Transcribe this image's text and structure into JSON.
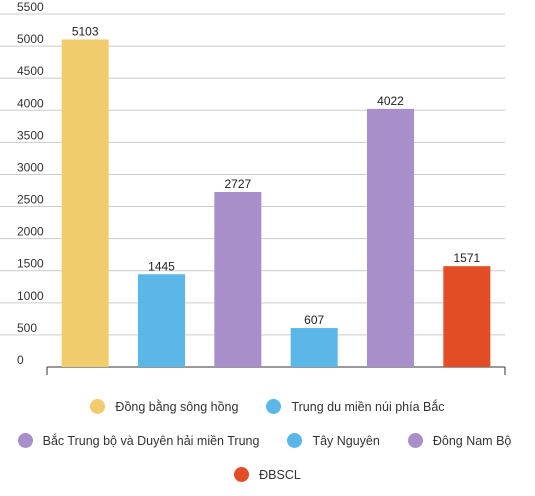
{
  "chart_data": {
    "type": "bar",
    "categories": [
      "Đồng bằng sông hồng",
      "Trung du miền núi phía Bắc",
      "Bắc Trung bộ và Duyên hải miền Trung",
      "Tây Nguyên",
      "Đông Nam Bộ",
      "ĐBSCL"
    ],
    "values": [
      5103,
      1445,
      2727,
      607,
      4022,
      1571
    ],
    "data_labels": [
      "5103",
      "1445",
      "2727",
      "607",
      "4022",
      "1571"
    ],
    "colors": [
      "#F0CC6C",
      "#5BB7E7",
      "#A98FCA",
      "#5BB7E7",
      "#A98FCA",
      "#E34D26"
    ],
    "yticks": [
      "0",
      "500",
      "1000",
      "1500",
      "2000",
      "2500",
      "3000",
      "3500",
      "4000",
      "4500",
      "5000",
      "5500"
    ],
    "ylim": [
      0,
      5500
    ],
    "grid": true,
    "legend_position": "bottom",
    "legend": [
      {
        "label": "Đồng bằng sông hồng",
        "color": "#F0CC6C"
      },
      {
        "label": "Trung du miền núi phía Bắc",
        "color": "#5BB7E7"
      },
      {
        "label": "Bắc Trung bộ và Duyên hải miền Trung",
        "color": "#A98FCA"
      },
      {
        "label": "Tây Nguyên",
        "color": "#5BB7E7"
      },
      {
        "label": "Đông Nam Bộ",
        "color": "#A98FCA"
      },
      {
        "label": "ĐBSCL",
        "color": "#E34D26"
      }
    ],
    "gridline_color": "#CCCCCC",
    "axis_color": "#333333"
  }
}
